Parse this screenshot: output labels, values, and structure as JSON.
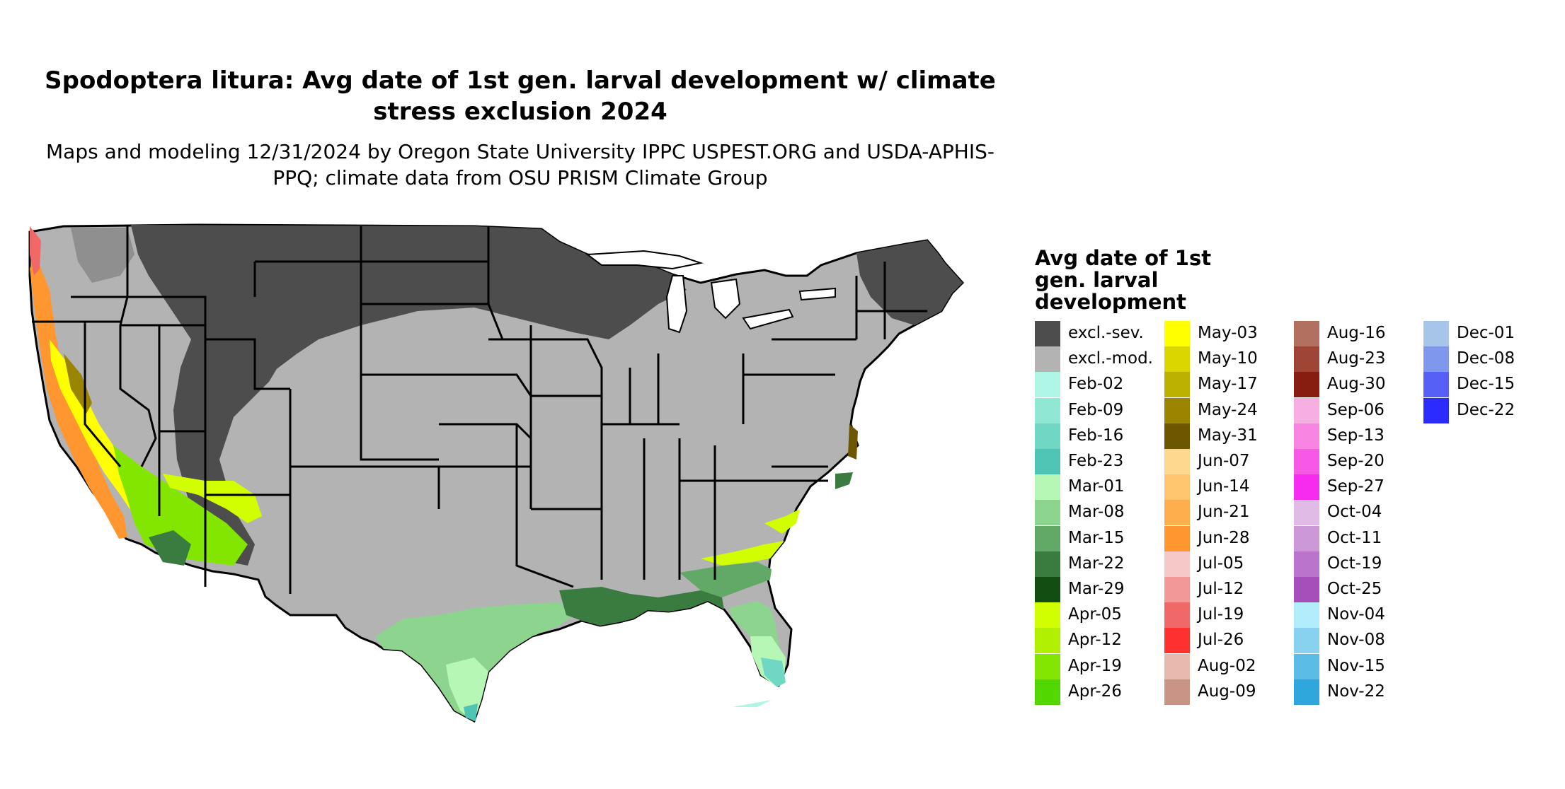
{
  "title": "Spodoptera litura: Avg date of 1st gen. larval development w/ climate stress exclusion 2024",
  "subtitle": "Maps and modeling 12/31/2024 by Oregon State University IPPC USPEST.ORG and USDA-APHIS-PPQ; climate data from OSU PRISM Climate Group",
  "legend": {
    "title": "Avg date of 1st gen. larval development",
    "columns": [
      [
        {
          "label": "excl.-sev.",
          "color": "#4d4d4d"
        },
        {
          "label": "excl.-mod.",
          "color": "#b3b3b3"
        },
        {
          "label": "Feb-02",
          "color": "#aff5e6"
        },
        {
          "label": "Feb-09",
          "color": "#90e8d4"
        },
        {
          "label": "Feb-16",
          "color": "#70d7c4"
        },
        {
          "label": "Feb-23",
          "color": "#50c4b4"
        },
        {
          "label": "Mar-01",
          "color": "#b6f7b6"
        },
        {
          "label": "Mar-08",
          "color": "#8dd48f"
        },
        {
          "label": "Mar-15",
          "color": "#62a866"
        },
        {
          "label": "Mar-22",
          "color": "#3a7c3f"
        },
        {
          "label": "Mar-29",
          "color": "#124d12"
        },
        {
          "label": "Apr-05",
          "color": "#d2ff00"
        },
        {
          "label": "Apr-12",
          "color": "#b1f000"
        },
        {
          "label": "Apr-19",
          "color": "#83e600"
        },
        {
          "label": "Apr-26",
          "color": "#52d600"
        }
      ],
      [
        {
          "label": "May-03",
          "color": "#ffff00"
        },
        {
          "label": "May-10",
          "color": "#dbd600"
        },
        {
          "label": "May-17",
          "color": "#bcb000"
        },
        {
          "label": "May-24",
          "color": "#9a8400"
        },
        {
          "label": "May-31",
          "color": "#6e5600"
        },
        {
          "label": "Jun-07",
          "color": "#ffd88f"
        },
        {
          "label": "Jun-14",
          "color": "#ffc46e"
        },
        {
          "label": "Jun-21",
          "color": "#ffae4e"
        },
        {
          "label": "Jun-28",
          "color": "#ff962f"
        },
        {
          "label": "Jul-05",
          "color": "#f6c9c9"
        },
        {
          "label": "Jul-12",
          "color": "#f29898"
        },
        {
          "label": "Jul-19",
          "color": "#f06868"
        },
        {
          "label": "Jul-26",
          "color": "#ff3030"
        },
        {
          "label": "Aug-02",
          "color": "#e8b9ad"
        },
        {
          "label": "Aug-09",
          "color": "#c99485"
        }
      ],
      [
        {
          "label": "Aug-16",
          "color": "#b27060"
        },
        {
          "label": "Aug-23",
          "color": "#9e4535"
        },
        {
          "label": "Aug-30",
          "color": "#861d10"
        },
        {
          "label": "Sep-06",
          "color": "#f7aee0"
        },
        {
          "label": "Sep-13",
          "color": "#f784e0"
        },
        {
          "label": "Sep-20",
          "color": "#f659e5"
        },
        {
          "label": "Sep-27",
          "color": "#f52bef"
        },
        {
          "label": "Oct-04",
          "color": "#dfbbe6"
        },
        {
          "label": "Oct-11",
          "color": "#cd98d8"
        },
        {
          "label": "Oct-19",
          "color": "#bb74cb"
        },
        {
          "label": "Oct-25",
          "color": "#a64fbb"
        },
        {
          "label": "Nov-04",
          "color": "#b3ecfb"
        },
        {
          "label": "Nov-08",
          "color": "#88d2f0"
        },
        {
          "label": "Nov-15",
          "color": "#5bbde6"
        },
        {
          "label": "Nov-22",
          "color": "#2fa6dc"
        }
      ],
      [
        {
          "label": "Dec-01",
          "color": "#a6c5e9"
        },
        {
          "label": "Dec-08",
          "color": "#7f98ee"
        },
        {
          "label": "Dec-15",
          "color": "#5660f4"
        },
        {
          "label": "Dec-22",
          "color": "#2b2bff"
        }
      ]
    ]
  }
}
